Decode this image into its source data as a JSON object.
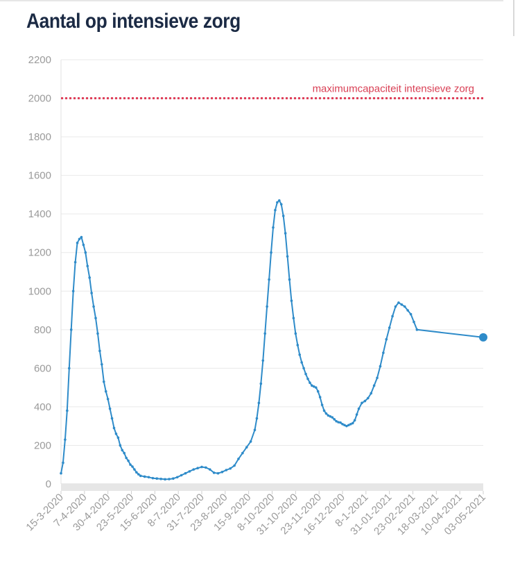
{
  "chart_data": {
    "type": "line",
    "title": "Aantal op intensieve zorg",
    "xlabel": "",
    "ylabel": "",
    "ylim": [
      0,
      2200
    ],
    "y_ticks": [
      0,
      200,
      400,
      600,
      800,
      1000,
      1200,
      1400,
      1600,
      1800,
      2000,
      2200
    ],
    "x_tick_labels": [
      "15-3-2020",
      "7-4-2020",
      "30-4-2020",
      "23-5-2020",
      "15-6-2020",
      "8-7-2020",
      "31-7-2020",
      "23-8-2020",
      "15-9-2020",
      "8-10-2020",
      "31-10-2020",
      "23-11-2020",
      "16-12-2020",
      "8-1-2021",
      "31-01-2021",
      "23-02-2021",
      "18-03-2021",
      "10-04-2021",
      "03-05-2021"
    ],
    "grid": true,
    "reference_line": {
      "value": 2000,
      "label": "maximumcapaciteit intensieve zorg",
      "color": "#e0405a"
    },
    "series_color": "#2e8bc9",
    "series": [
      {
        "name": "",
        "points": [
          [
            "15-3-2020",
            55
          ],
          [
            "17-3-2020",
            110
          ],
          [
            "19-3-2020",
            230
          ],
          [
            "21-3-2020",
            380
          ],
          [
            "23-3-2020",
            600
          ],
          [
            "25-3-2020",
            800
          ],
          [
            "27-3-2020",
            1000
          ],
          [
            "29-3-2020",
            1150
          ],
          [
            "31-3-2020",
            1250
          ],
          [
            "2-4-2020",
            1270
          ],
          [
            "4-4-2020",
            1280
          ],
          [
            "6-4-2020",
            1240
          ],
          [
            "8-4-2020",
            1200
          ],
          [
            "10-4-2020",
            1130
          ],
          [
            "12-4-2020",
            1070
          ],
          [
            "14-4-2020",
            990
          ],
          [
            "16-4-2020",
            920
          ],
          [
            "18-4-2020",
            860
          ],
          [
            "20-4-2020",
            780
          ],
          [
            "22-4-2020",
            690
          ],
          [
            "24-4-2020",
            620
          ],
          [
            "26-4-2020",
            530
          ],
          [
            "28-4-2020",
            480
          ],
          [
            "30-4-2020",
            440
          ],
          [
            "2-5-2020",
            390
          ],
          [
            "4-5-2020",
            340
          ],
          [
            "6-5-2020",
            290
          ],
          [
            "8-5-2020",
            260
          ],
          [
            "10-5-2020",
            240
          ],
          [
            "12-5-2020",
            200
          ],
          [
            "14-5-2020",
            175
          ],
          [
            "16-5-2020",
            160
          ],
          [
            "18-5-2020",
            135
          ],
          [
            "20-5-2020",
            120
          ],
          [
            "22-5-2020",
            100
          ],
          [
            "24-5-2020",
            90
          ],
          [
            "26-5-2020",
            75
          ],
          [
            "28-5-2020",
            60
          ],
          [
            "30-5-2020",
            50
          ],
          [
            "1-6-2020",
            42
          ],
          [
            "5-6-2020",
            38
          ],
          [
            "9-6-2020",
            35
          ],
          [
            "13-6-2020",
            30
          ],
          [
            "17-6-2020",
            28
          ],
          [
            "21-6-2020",
            26
          ],
          [
            "25-6-2020",
            24
          ],
          [
            "29-6-2020",
            25
          ],
          [
            "3-7-2020",
            28
          ],
          [
            "7-7-2020",
            35
          ],
          [
            "11-7-2020",
            45
          ],
          [
            "15-7-2020",
            55
          ],
          [
            "19-7-2020",
            65
          ],
          [
            "23-7-2020",
            75
          ],
          [
            "27-7-2020",
            82
          ],
          [
            "31-7-2020",
            88
          ],
          [
            "4-8-2020",
            85
          ],
          [
            "8-8-2020",
            75
          ],
          [
            "12-8-2020",
            58
          ],
          [
            "16-8-2020",
            55
          ],
          [
            "20-8-2020",
            62
          ],
          [
            "24-8-2020",
            72
          ],
          [
            "28-8-2020",
            80
          ],
          [
            "1-9-2020",
            95
          ],
          [
            "5-9-2020",
            130
          ],
          [
            "9-9-2020",
            160
          ],
          [
            "13-9-2020",
            190
          ],
          [
            "17-9-2020",
            220
          ],
          [
            "21-9-2020",
            280
          ],
          [
            "23-9-2020",
            340
          ],
          [
            "25-9-2020",
            420
          ],
          [
            "27-9-2020",
            520
          ],
          [
            "29-9-2020",
            640
          ],
          [
            "1-10-2020",
            780
          ],
          [
            "3-10-2020",
            920
          ],
          [
            "5-10-2020",
            1060
          ],
          [
            "7-10-2020",
            1200
          ],
          [
            "9-10-2020",
            1330
          ],
          [
            "11-10-2020",
            1420
          ],
          [
            "13-10-2020",
            1460
          ],
          [
            "15-10-2020",
            1470
          ],
          [
            "17-10-2020",
            1450
          ],
          [
            "19-10-2020",
            1390
          ],
          [
            "21-10-2020",
            1300
          ],
          [
            "23-10-2020",
            1180
          ],
          [
            "25-10-2020",
            1060
          ],
          [
            "27-10-2020",
            950
          ],
          [
            "29-10-2020",
            860
          ],
          [
            "31-10-2020",
            780
          ],
          [
            "2-11-2020",
            720
          ],
          [
            "4-11-2020",
            670
          ],
          [
            "6-11-2020",
            630
          ],
          [
            "8-11-2020",
            600
          ],
          [
            "10-11-2020",
            570
          ],
          [
            "12-11-2020",
            545
          ],
          [
            "14-11-2020",
            525
          ],
          [
            "16-11-2020",
            510
          ],
          [
            "18-11-2020",
            505
          ],
          [
            "20-11-2020",
            500
          ],
          [
            "22-11-2020",
            480
          ],
          [
            "24-11-2020",
            450
          ],
          [
            "26-11-2020",
            410
          ],
          [
            "28-11-2020",
            380
          ],
          [
            "30-11-2020",
            365
          ],
          [
            "2-12-2020",
            355
          ],
          [
            "4-12-2020",
            350
          ],
          [
            "6-12-2020",
            345
          ],
          [
            "8-12-2020",
            335
          ],
          [
            "10-12-2020",
            325
          ],
          [
            "12-12-2020",
            320
          ],
          [
            "14-12-2020",
            318
          ],
          [
            "16-12-2020",
            310
          ],
          [
            "18-12-2020",
            305
          ],
          [
            "20-12-2020",
            300
          ],
          [
            "22-12-2020",
            305
          ],
          [
            "24-12-2020",
            310
          ],
          [
            "26-12-2020",
            315
          ],
          [
            "28-12-2020",
            330
          ],
          [
            "30-12-2020",
            360
          ],
          [
            "1-1-2021",
            390
          ],
          [
            "4-1-2021",
            420
          ],
          [
            "7-1-2021",
            430
          ],
          [
            "10-1-2021",
            445
          ],
          [
            "13-1-2021",
            470
          ],
          [
            "16-1-2021",
            510
          ],
          [
            "19-1-2021",
            550
          ],
          [
            "22-1-2021",
            610
          ],
          [
            "25-1-2021",
            680
          ],
          [
            "28-1-2021",
            750
          ],
          [
            "31-1-2021",
            810
          ],
          [
            "3-2-2021",
            870
          ],
          [
            "6-2-2021",
            920
          ],
          [
            "9-2-2021",
            940
          ],
          [
            "12-2-2021",
            930
          ],
          [
            "15-2-2021",
            920
          ],
          [
            "18-2-2021",
            900
          ],
          [
            "21-2-2021",
            880
          ],
          [
            "24-2-2021",
            840
          ],
          [
            "27-2-2021",
            800
          ],
          [
            "3-5-2021",
            760
          ]
        ]
      }
    ]
  }
}
